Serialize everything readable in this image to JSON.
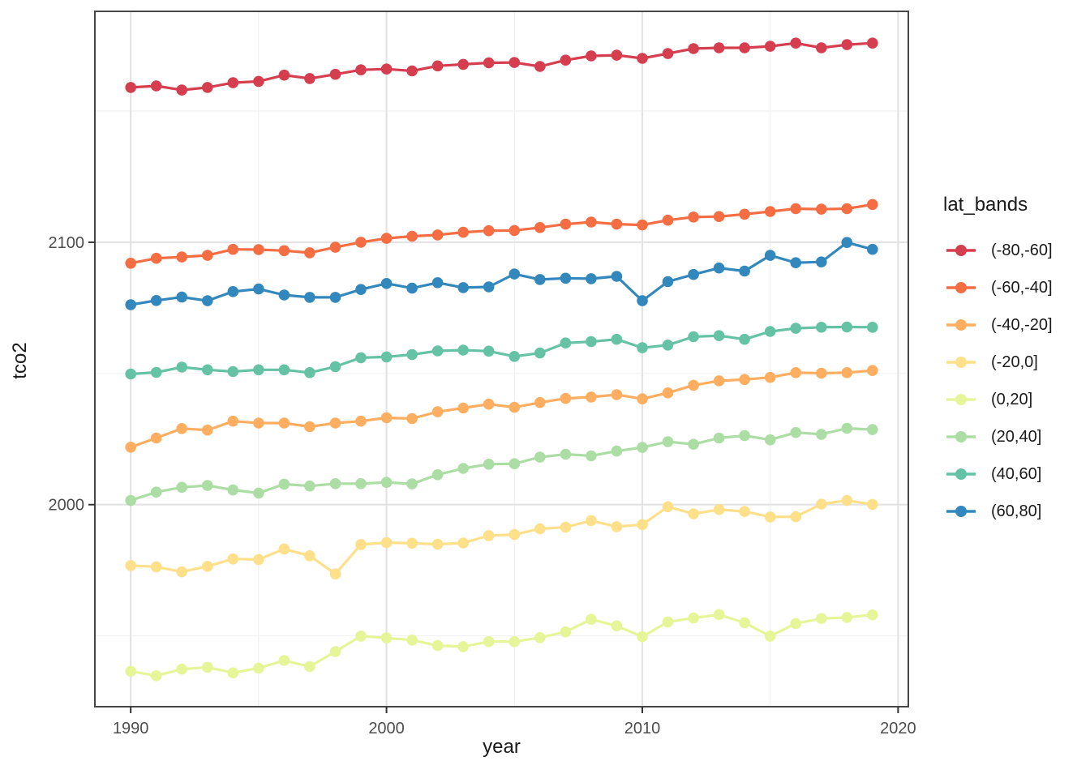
{
  "chart_data": {
    "type": "line",
    "title": "",
    "xlabel": "year",
    "ylabel": "tco2",
    "legend_title": "lat_bands",
    "legend_position": "right",
    "grid": true,
    "xlim": [
      1988.6,
      2020.4
    ],
    "ylim": [
      1923,
      2188
    ],
    "xticks": [
      1990,
      2000,
      2010,
      2020
    ],
    "yticks": [
      2100,
      2000
    ],
    "xticks_minor": [
      1995,
      2005,
      2015
    ],
    "yticks_minor": [
      2150,
      2050,
      1950
    ],
    "x": [
      1990,
      1991,
      1992,
      1993,
      1994,
      1995,
      1996,
      1997,
      1998,
      1999,
      2000,
      2001,
      2002,
      2003,
      2004,
      2005,
      2006,
      2007,
      2008,
      2009,
      2010,
      2011,
      2012,
      2013,
      2014,
      2015,
      2016,
      2017,
      2018,
      2019
    ],
    "series": [
      {
        "name": "(-80,-60]",
        "color": "#D53E4F",
        "values": [
          2159,
          2159.6,
          2158,
          2159,
          2160.8,
          2161.3,
          2163.7,
          2162.4,
          2164,
          2165.7,
          2166,
          2165.3,
          2167.2,
          2167.8,
          2168.4,
          2168.5,
          2167,
          2169.4,
          2171,
          2171.3,
          2170.1,
          2171.9,
          2173.8,
          2174.1,
          2174.1,
          2174.7,
          2175.9,
          2174.1,
          2175.3,
          2175.9
        ]
      },
      {
        "name": "(-60,-40]",
        "color": "#F46D43",
        "values": [
          2092,
          2093.9,
          2094.4,
          2095,
          2097.3,
          2097.2,
          2096.8,
          2096,
          2098.1,
          2100,
          2101.5,
          2102.3,
          2102.8,
          2103.8,
          2104.4,
          2104.5,
          2105.6,
          2106.9,
          2107.7,
          2106.9,
          2106.6,
          2108.4,
          2109.6,
          2109.8,
          2110.7,
          2111.7,
          2112.8,
          2112.6,
          2112.8,
          2114.4
        ]
      },
      {
        "name": "(-40,-20]",
        "color": "#FDAE61",
        "values": [
          2021.9,
          2025.4,
          2029,
          2028.4,
          2031.8,
          2031.1,
          2031.1,
          2029.7,
          2031.1,
          2031.8,
          2033.1,
          2032.8,
          2035.4,
          2036.8,
          2038.3,
          2037.1,
          2038.9,
          2040.5,
          2041,
          2041.9,
          2040.3,
          2042.6,
          2045.5,
          2047.2,
          2047.7,
          2048.5,
          2050.3,
          2050.1,
          2050.3,
          2051.1
        ]
      },
      {
        "name": "(-20,0]",
        "color": "#FEE08B",
        "values": [
          1976.8,
          1976.3,
          1974.4,
          1976.5,
          1979.3,
          1979.1,
          1983.1,
          1980.5,
          1973.6,
          1984.8,
          1985.5,
          1985.3,
          1984.9,
          1985.4,
          1988.2,
          1988.6,
          1990.8,
          1991.4,
          1993.9,
          1991.6,
          1992.4,
          1999.2,
          1996.5,
          1998.1,
          1997.4,
          1995.3,
          1995.4,
          2000.2,
          2001.6,
          2000.1
        ]
      },
      {
        "name": "(0,20]",
        "color": "#E6F598",
        "values": [
          1936.5,
          1934.8,
          1937.3,
          1938,
          1935.9,
          1937.7,
          1940.6,
          1938.3,
          1944,
          1949.9,
          1949.2,
          1948.4,
          1946.3,
          1945.9,
          1947.8,
          1947.8,
          1949.3,
          1951.5,
          1956.3,
          1953.8,
          1949.7,
          1955.3,
          1956.8,
          1958.1,
          1955,
          1949.9,
          1954.7,
          1956.6,
          1957,
          1958
        ]
      },
      {
        "name": "(20,40]",
        "color": "#ABDDA4",
        "values": [
          2001.6,
          2004.8,
          2006.6,
          2007.3,
          2005.6,
          2004.4,
          2007.8,
          2007.1,
          2008,
          2008,
          2008.5,
          2007.9,
          2011.4,
          2013.8,
          2015.4,
          2015.6,
          2018.1,
          2019.2,
          2018.6,
          2020.4,
          2021.8,
          2024,
          2023,
          2025.4,
          2026.3,
          2024.7,
          2027.5,
          2026.8,
          2029.1,
          2028.6
        ]
      },
      {
        "name": "(40,60]",
        "color": "#66C2A5",
        "values": [
          2049.8,
          2050.4,
          2052.4,
          2051.4,
          2050.7,
          2051.4,
          2051.4,
          2050.3,
          2052.6,
          2056,
          2056.3,
          2057.2,
          2058.6,
          2058.9,
          2058.5,
          2056.5,
          2057.8,
          2061.6,
          2062.1,
          2063,
          2059.8,
          2060.8,
          2064,
          2064.4,
          2063,
          2066,
          2067.2,
          2067.6,
          2067.7,
          2067.6
        ]
      },
      {
        "name": "(60,80]",
        "color": "#3288BD",
        "values": [
          2076.2,
          2077.8,
          2079.1,
          2077.7,
          2081.2,
          2082.2,
          2079.9,
          2079,
          2079,
          2082,
          2084.3,
          2082.5,
          2084.6,
          2082.7,
          2083,
          2087.9,
          2085.8,
          2086.3,
          2086.1,
          2087,
          2077.7,
          2085,
          2087.7,
          2090.2,
          2089,
          2095,
          2092.2,
          2092.5,
          2099.9,
          2097.3
        ]
      }
    ]
  },
  "axes": {
    "x_tick_labels": [
      "1990",
      "2000",
      "2010",
      "2020"
    ],
    "y_tick_labels": [
      "2100",
      "2000"
    ]
  },
  "legend": {
    "title": "lat_bands",
    "items": [
      "(-80,-60]",
      "(-60,-40]",
      "(-40,-20]",
      "(-20,0]",
      "(0,20]",
      "(20,40]",
      "(40,60]",
      "(60,80]"
    ]
  },
  "colors": {
    "grid_major": "#E3E3E3",
    "grid_minor": "#F1F1F1",
    "panel_border": "#474747",
    "tick_mark": "#333333",
    "tick_label": "#4D4D4D",
    "axis_title": "#1A1A1A"
  }
}
